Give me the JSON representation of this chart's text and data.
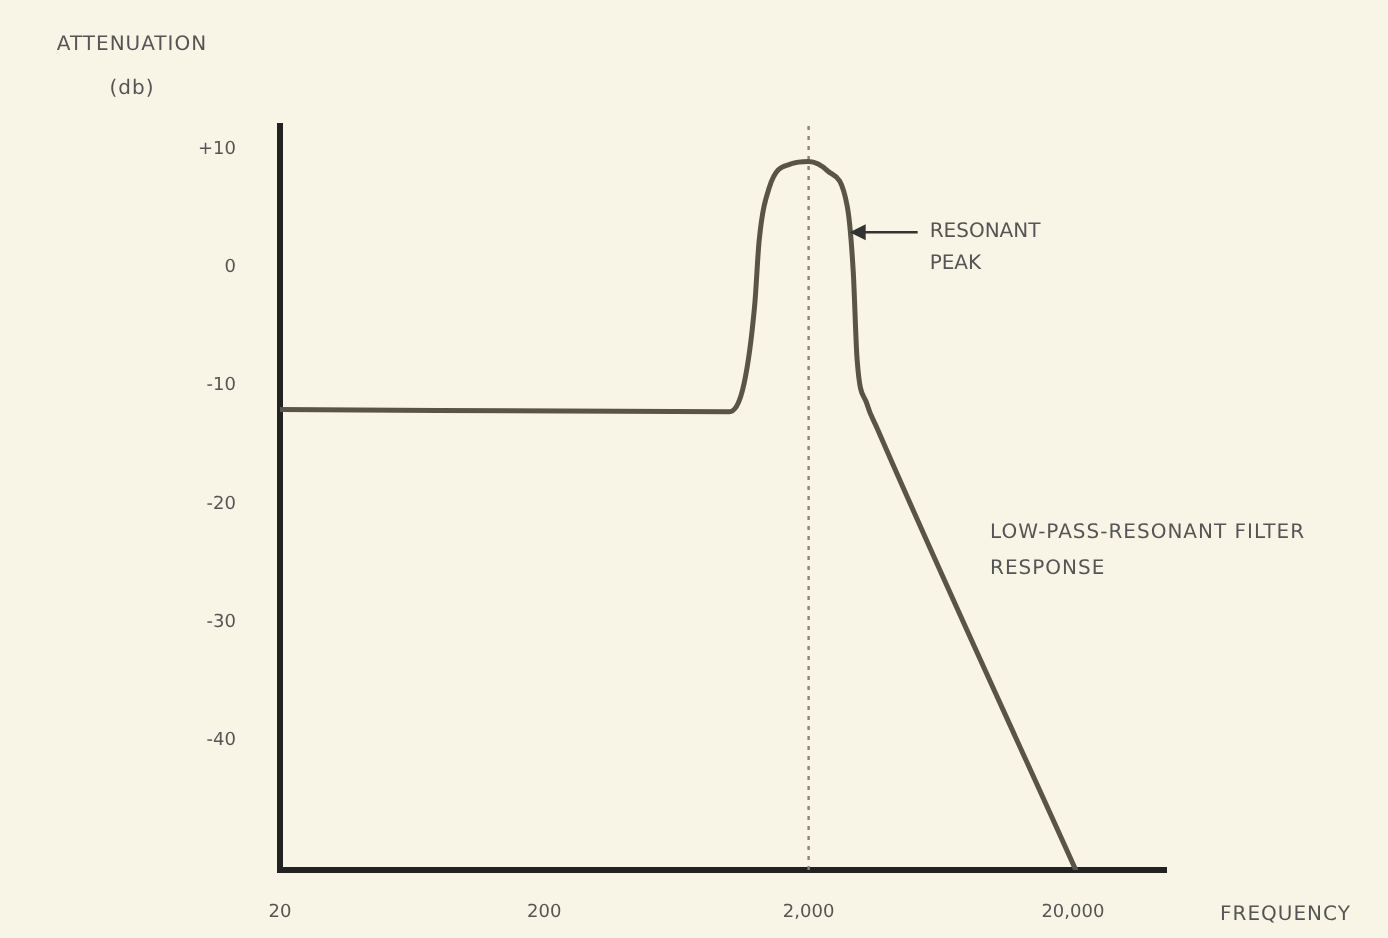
{
  "chart_data": {
    "type": "line",
    "ylabel": "ATTENUATION (db)",
    "xlabel": "FREQUENCY",
    "log": "x",
    "xlim": [
      20,
      45000
    ],
    "ylim": [
      -51,
      12
    ],
    "xticks": [
      20,
      200,
      {
        "value": 2000,
        "label": "2,000"
      },
      {
        "value": 20000,
        "label": "20,000"
      }
    ],
    "yticks": [
      {
        "value": 10,
        "label": "+10"
      },
      0,
      -10,
      -20,
      -30,
      -40
    ],
    "grid": false,
    "legend": false,
    "marker": "none",
    "line_style": "solid",
    "series": [
      {
        "color": "#5a5446",
        "x": [
          20,
          1000,
          1140,
          1250,
          1300,
          1420,
          1720,
          2000,
          2360,
          2800,
          2950,
          3050,
          3320,
          3650,
          20500
        ],
        "values": [
          -12,
          -12.2,
          -9.8,
          -3.2,
          2.3,
          6.8,
          8.8,
          9,
          8.2,
          5.2,
          -0.3,
          -7.7,
          -11.5,
          -13.7,
          -51
        ]
      }
    ],
    "ref_lines": [
      {
        "axis": "x",
        "value": 2000,
        "line_style": "dotted",
        "color": "#8a8470"
      }
    ],
    "annotations": [
      {
        "text": "RESONANT PEAK",
        "x": 2860,
        "y": 3
      },
      "LOW-PASS-RESONANT FILTER RESPONSE"
    ]
  }
}
